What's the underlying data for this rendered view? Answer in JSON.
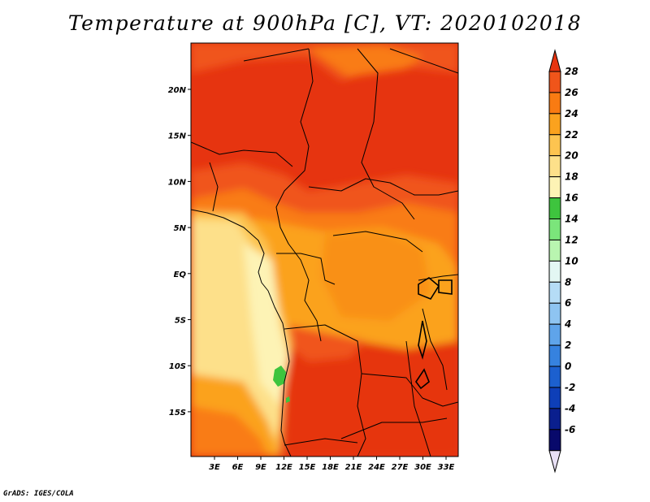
{
  "title": "Temperature at 900hPa [C], VT: 2020102018",
  "credit": "GrADS: IGES/COLA",
  "chart_data": {
    "type": "heatmap",
    "title": "Temperature at 900hPa [C], VT: 2020102018",
    "units": "C",
    "x_ticks": [
      "3E",
      "6E",
      "9E",
      "12E",
      "15E",
      "18E",
      "21E",
      "24E",
      "27E",
      "30E",
      "33E"
    ],
    "y_ticks": [
      "20N",
      "15N",
      "10N",
      "5N",
      "EQ",
      "5S",
      "10S",
      "15S"
    ],
    "colorbar_labels": [
      "28",
      "26",
      "24",
      "22",
      "20",
      "18",
      "16",
      "14",
      "12",
      "10",
      "8",
      "6",
      "4",
      "2",
      "0",
      "-2",
      "-4",
      "-6"
    ],
    "colorbar_colors": [
      "#e63410",
      "#f0551a",
      "#f97b12",
      "#fba21e",
      "#fdc450",
      "#fde08a",
      "#fdf3b5",
      "#3ec43e",
      "#7be57b",
      "#b9f5b0",
      "#e3f7f3",
      "#b5dcf6",
      "#8ec4f1",
      "#5fa4ea",
      "#3682df",
      "#1c60cf",
      "#0e3fb8",
      "#0a1f8e",
      "#08096b",
      "#e8e0f5"
    ],
    "colorbar_range": [
      -6,
      28
    ],
    "regions": [
      {
        "description": "northern interior (Sahel/Sahara)",
        "value_range": [
          26,
          30
        ]
      },
      {
        "description": "central Congo basin",
        "value_range": [
          22,
          26
        ]
      },
      {
        "description": "Atlantic ocean west of Angola/Gabon",
        "value_range": [
          16,
          22
        ]
      },
      {
        "description": "small cool spot near 12E, 11S",
        "value_range": [
          12,
          16
        ]
      }
    ]
  }
}
